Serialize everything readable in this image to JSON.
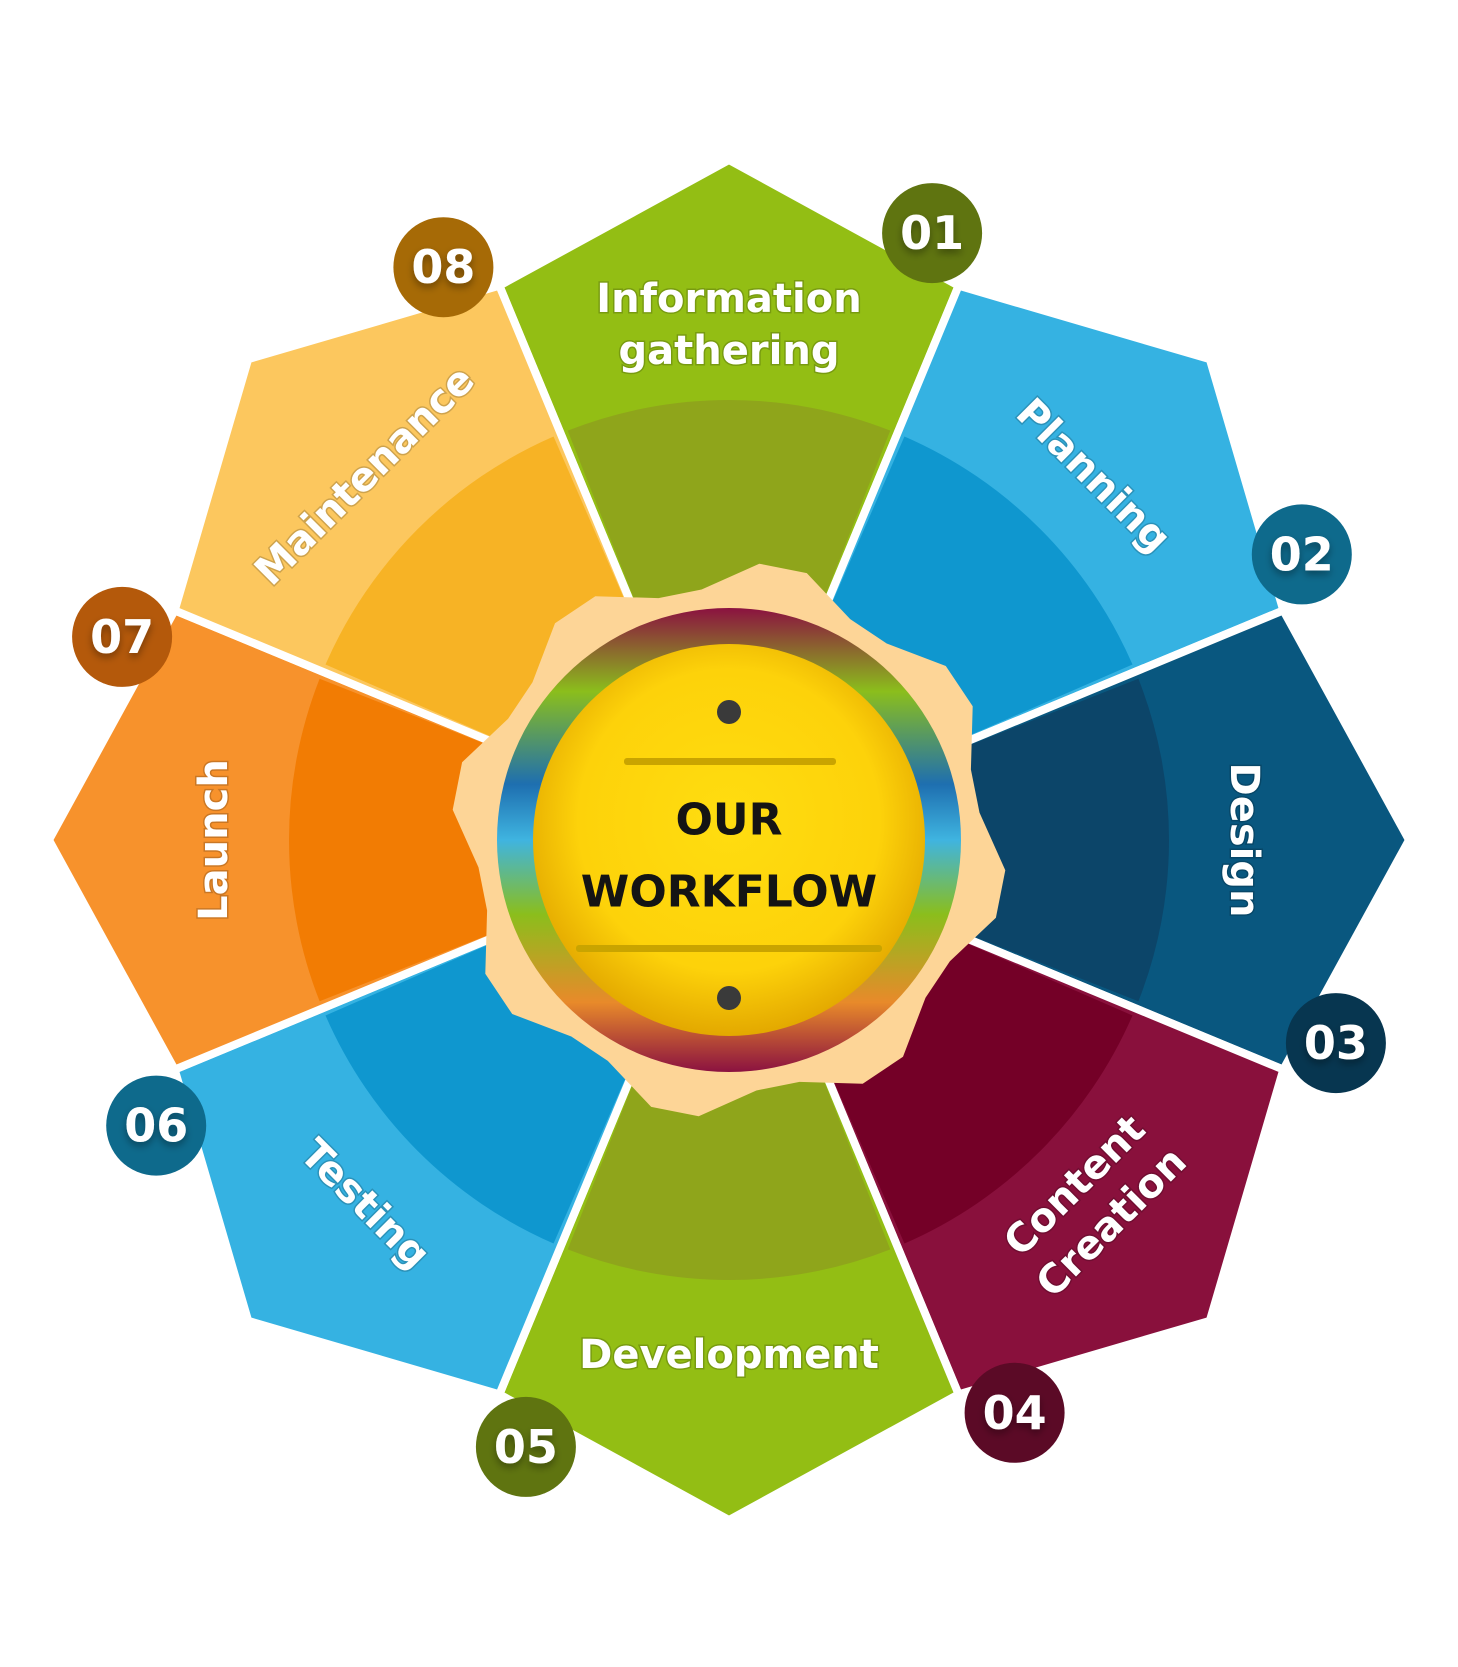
{
  "center": {
    "line1": "OUR",
    "line2": "WORKFLOW",
    "fill": "#FDD20A",
    "ring_colors": [
      "#8B1240",
      "#8BBE1C",
      "#1E6FB0",
      "#3FB4E0",
      "#8BBE1C",
      "#8B1240"
    ]
  },
  "steps": [
    {
      "number": "01",
      "label_lines": [
        "Information",
        "gathering"
      ],
      "color": "#93BE14",
      "inner_color": "#8FA51B",
      "badge_color": "#5F7410"
    },
    {
      "number": "02",
      "label_lines": [
        "Planning"
      ],
      "color": "#35B2E2",
      "inner_color": "#0F97CF",
      "badge_color": "#0E6A8C"
    },
    {
      "number": "03",
      "label_lines": [
        "Design"
      ],
      "color": "#09577F",
      "inner_color": "#0C4569",
      "badge_color": "#073650"
    },
    {
      "number": "04",
      "label_lines": [
        "Content",
        "Creation"
      ],
      "color": "#89103C",
      "inner_color": "#740027",
      "badge_color": "#5B0A26"
    },
    {
      "number": "05",
      "label_lines": [
        "Development"
      ],
      "color": "#93BE14",
      "inner_color": "#8FA51B",
      "badge_color": "#5F7410"
    },
    {
      "number": "06",
      "label_lines": [
        "Testing"
      ],
      "color": "#35B2E2",
      "inner_color": "#0F97CF",
      "badge_color": "#0E6A8C"
    },
    {
      "number": "07",
      "label_lines": [
        "Launch"
      ],
      "color": "#F7922C",
      "inner_color": "#F27C03",
      "badge_color": "#B4590B"
    },
    {
      "number": "08",
      "label_lines": [
        "Maintenance"
      ],
      "color": "#FCC75E",
      "inner_color": "#F7B325",
      "badge_color": "#A66A06"
    }
  ],
  "gear_color": "#FDD597"
}
